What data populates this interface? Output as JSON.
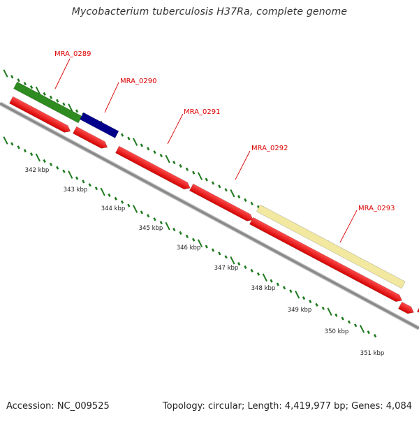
{
  "title": "Mycobacterium tuberculosis H37Ra, complete genome",
  "footer": {
    "accession": "Accession: NC_009525",
    "summary": "Topology: circular; Length: 4,419,977 bp; Genes: 4,084"
  },
  "genes": [
    {
      "id": "MRA_0289",
      "strand": "reverse",
      "color": "#2e8b1f"
    },
    {
      "id": "MRA_0290",
      "strand": "reverse",
      "color": "#00008b"
    },
    {
      "id": "MRA_0291",
      "strand": "forward",
      "color": "#ff0000"
    },
    {
      "id": "MRA_0292",
      "strand": "forward",
      "color": "#ff0000"
    },
    {
      "id": "MRA_0293",
      "strand": "reverse",
      "color": "#f2e8a0"
    }
  ],
  "ticks": [
    "342 kbp",
    "343 kbp",
    "344 kbp",
    "345 kbp",
    "346 kbp",
    "347 kbp",
    "348 kbp",
    "349 kbp",
    "350 kbp",
    "351 kbp"
  ],
  "colors": {
    "label": "#dd0000",
    "tick": "#1f7a1f",
    "backbone": "#8a8a8a"
  }
}
